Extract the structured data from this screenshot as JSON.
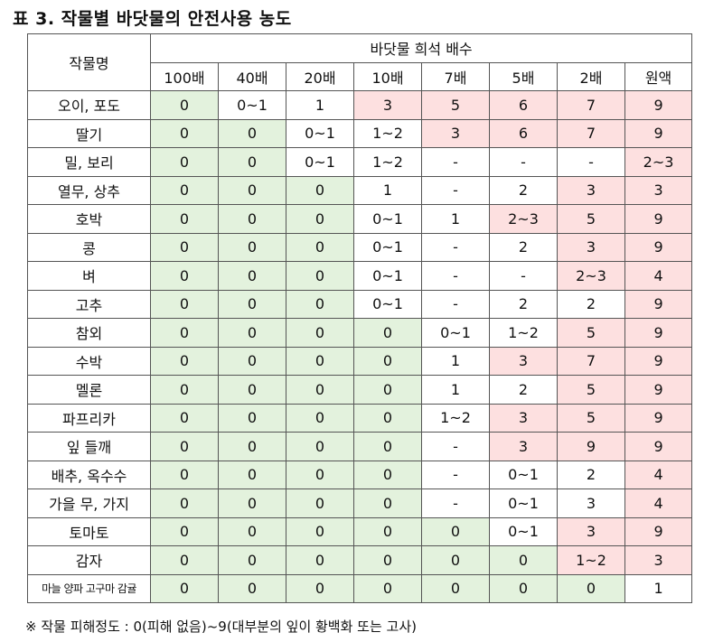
{
  "title": "표 3. 작물별 바닷물의 안전사용 농도",
  "header": {
    "crop_col": "작물명",
    "dilution_group": "바닷물 희석 배수",
    "dilutions": [
      "100배",
      "40배",
      "20배",
      "10배",
      "7배",
      "5배",
      "2배",
      "원액"
    ]
  },
  "legend_colors": {
    "green": "#e3f2dd",
    "pink": "#fde0e0",
    "white": "#ffffff"
  },
  "rows": [
    {
      "crop": "오이, 포도",
      "values": [
        "0",
        "0~1",
        "1",
        "3",
        "5",
        "6",
        "7",
        "9"
      ],
      "shade": [
        "g",
        "w",
        "w",
        "r",
        "r",
        "r",
        "r",
        "r"
      ]
    },
    {
      "crop": "딸기",
      "values": [
        "0",
        "0",
        "0~1",
        "1~2",
        "3",
        "6",
        "7",
        "9"
      ],
      "shade": [
        "g",
        "g",
        "w",
        "w",
        "r",
        "r",
        "r",
        "r"
      ]
    },
    {
      "crop": "밀, 보리",
      "values": [
        "0",
        "0",
        "0~1",
        "1~2",
        "-",
        "-",
        "-",
        "2~3"
      ],
      "shade": [
        "g",
        "g",
        "w",
        "w",
        "w",
        "w",
        "w",
        "r"
      ]
    },
    {
      "crop": "열무, 상추",
      "values": [
        "0",
        "0",
        "0",
        "1",
        "-",
        "2",
        "3",
        "3"
      ],
      "shade": [
        "g",
        "g",
        "g",
        "w",
        "w",
        "w",
        "r",
        "r"
      ]
    },
    {
      "crop": "호박",
      "values": [
        "0",
        "0",
        "0",
        "0~1",
        "1",
        "2~3",
        "5",
        "9"
      ],
      "shade": [
        "g",
        "g",
        "g",
        "w",
        "w",
        "r",
        "r",
        "r"
      ]
    },
    {
      "crop": "콩",
      "values": [
        "0",
        "0",
        "0",
        "0~1",
        "-",
        "2",
        "3",
        "9"
      ],
      "shade": [
        "g",
        "g",
        "g",
        "w",
        "w",
        "w",
        "r",
        "r"
      ]
    },
    {
      "crop": "벼",
      "values": [
        "0",
        "0",
        "0",
        "0~1",
        "-",
        "-",
        "2~3",
        "4"
      ],
      "shade": [
        "g",
        "g",
        "g",
        "w",
        "w",
        "w",
        "r",
        "r"
      ]
    },
    {
      "crop": "고추",
      "values": [
        "0",
        "0",
        "0",
        "0~1",
        "-",
        "2",
        "2",
        "9"
      ],
      "shade": [
        "g",
        "g",
        "g",
        "w",
        "w",
        "w",
        "w",
        "r"
      ]
    },
    {
      "crop": "참외",
      "values": [
        "0",
        "0",
        "0",
        "0",
        "0~1",
        "1~2",
        "5",
        "9"
      ],
      "shade": [
        "g",
        "g",
        "g",
        "g",
        "w",
        "w",
        "r",
        "r"
      ]
    },
    {
      "crop": "수박",
      "values": [
        "0",
        "0",
        "0",
        "0",
        "1",
        "3",
        "7",
        "9"
      ],
      "shade": [
        "g",
        "g",
        "g",
        "g",
        "w",
        "r",
        "r",
        "r"
      ]
    },
    {
      "crop": "멜론",
      "values": [
        "0",
        "0",
        "0",
        "0",
        "1",
        "2",
        "5",
        "9"
      ],
      "shade": [
        "g",
        "g",
        "g",
        "g",
        "w",
        "w",
        "r",
        "r"
      ]
    },
    {
      "crop": "파프리카",
      "values": [
        "0",
        "0",
        "0",
        "0",
        "1~2",
        "3",
        "5",
        "9"
      ],
      "shade": [
        "g",
        "g",
        "g",
        "g",
        "w",
        "r",
        "r",
        "r"
      ]
    },
    {
      "crop": "잎 들깨",
      "values": [
        "0",
        "0",
        "0",
        "0",
        "-",
        "3",
        "9",
        "9"
      ],
      "shade": [
        "g",
        "g",
        "g",
        "g",
        "w",
        "r",
        "r",
        "r"
      ]
    },
    {
      "crop": "배추, 옥수수",
      "values": [
        "0",
        "0",
        "0",
        "0",
        "-",
        "0~1",
        "2",
        "4"
      ],
      "shade": [
        "g",
        "g",
        "g",
        "g",
        "w",
        "w",
        "w",
        "r"
      ]
    },
    {
      "crop": "가을 무, 가지",
      "values": [
        "0",
        "0",
        "0",
        "0",
        "-",
        "0~1",
        "3",
        "4"
      ],
      "shade": [
        "g",
        "g",
        "g",
        "g",
        "w",
        "w",
        "w",
        "r"
      ]
    },
    {
      "crop": "토마토",
      "values": [
        "0",
        "0",
        "0",
        "0",
        "0",
        "0~1",
        "3",
        "9"
      ],
      "shade": [
        "g",
        "g",
        "g",
        "g",
        "g",
        "w",
        "r",
        "r"
      ]
    },
    {
      "crop": "감자",
      "values": [
        "0",
        "0",
        "0",
        "0",
        "0",
        "0",
        "1~2",
        "3"
      ],
      "shade": [
        "g",
        "g",
        "g",
        "g",
        "g",
        "g",
        "r",
        "r"
      ]
    },
    {
      "crop": "마늘 양파 고구마 감귤",
      "small": true,
      "values": [
        "0",
        "0",
        "0",
        "0",
        "0",
        "0",
        "0",
        "1"
      ],
      "shade": [
        "g",
        "g",
        "g",
        "g",
        "g",
        "g",
        "g",
        "w"
      ]
    }
  ],
  "note": "※ 작물 피해정도 : 0(피해 없음)~9(대부분의 잎이 황백화 또는 고사)"
}
